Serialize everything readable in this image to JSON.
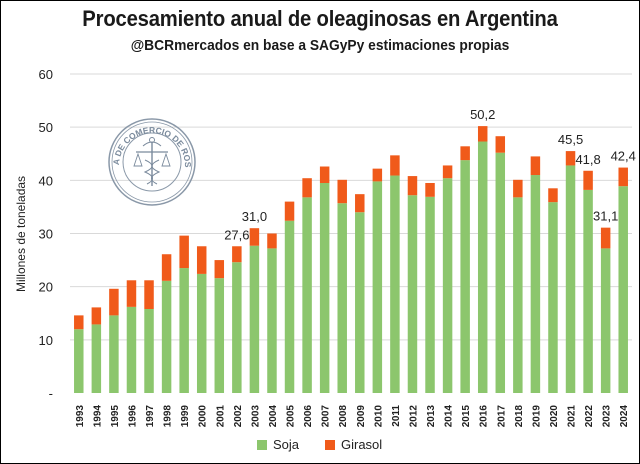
{
  "chart_data": {
    "type": "bar",
    "stacked": true,
    "title": "Procesamiento anual de oleaginosas en Argentina",
    "subtitle": "@BCRmercados en base a SAGyPy estimaciones propias",
    "ylabel": "Millones de  toneladas",
    "xlabel": "",
    "ylim": [
      0,
      60
    ],
    "yticks": [
      "-",
      "10",
      "20",
      "30",
      "40",
      "50",
      "60"
    ],
    "grid": true,
    "legend_position": "bottom",
    "categories": [
      "1993",
      "1994",
      "1995",
      "1996",
      "1997",
      "1998",
      "1999",
      "2000",
      "2001",
      "2002",
      "2003",
      "2004",
      "2005",
      "2006",
      "2007",
      "2008",
      "2009",
      "2010",
      "2011",
      "2012",
      "2013",
      "2014",
      "2015",
      "2016",
      "2017",
      "2018",
      "2019",
      "2020",
      "2021",
      "2022",
      "2023",
      "2024"
    ],
    "series": [
      {
        "name": "Soja",
        "color": "#8cc66d",
        "values": [
          12.0,
          12.9,
          14.6,
          16.2,
          15.8,
          21.1,
          23.5,
          22.4,
          21.6,
          24.6,
          27.7,
          27.2,
          32.4,
          36.8,
          39.5,
          35.7,
          34.0,
          39.8,
          40.9,
          37.2,
          36.9,
          40.4,
          43.8,
          47.3,
          45.2,
          36.8,
          41.0,
          35.9,
          42.8,
          38.2,
          27.2,
          38.9
        ]
      },
      {
        "name": "Girasol",
        "color": "#f05a1a",
        "values": [
          2.6,
          3.2,
          5.0,
          5.0,
          5.4,
          5.0,
          6.1,
          5.2,
          3.4,
          3.0,
          3.3,
          2.8,
          3.6,
          3.6,
          3.1,
          4.4,
          3.4,
          2.4,
          3.8,
          3.6,
          2.6,
          2.4,
          2.6,
          2.9,
          3.1,
          3.3,
          3.5,
          2.6,
          2.7,
          3.6,
          3.9,
          3.5
        ]
      }
    ],
    "data_labels": [
      {
        "category": "2002",
        "text": "27,6"
      },
      {
        "category": "2003",
        "text": "31,0"
      },
      {
        "category": "2016",
        "text": "50,2"
      },
      {
        "category": "2021",
        "text": "45,5"
      },
      {
        "category": "2022",
        "text": "41,8"
      },
      {
        "category": "2023",
        "text": "31,1"
      },
      {
        "category": "2024",
        "text": "42,4"
      }
    ],
    "watermark_text": "BOLSA DE COMERCIO DE ROSARIO"
  }
}
